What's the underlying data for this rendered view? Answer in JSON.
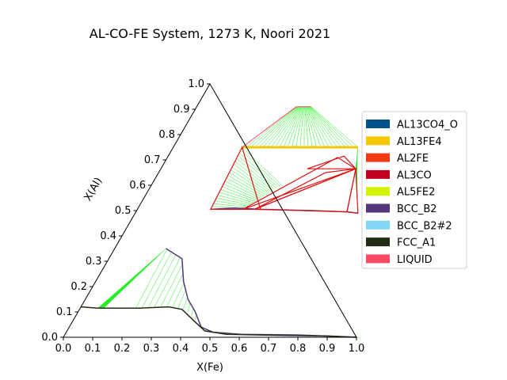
{
  "chart_data": {
    "type": "ternary-phase-diagram",
    "title": "AL-CO-FE System, 1273 K, Noori 2021",
    "xlabel": "X(Fe)",
    "ylabel": "X(Al)",
    "xlim": [
      0,
      1
    ],
    "ylim": [
      0,
      1
    ],
    "x_ticks": [
      "0.0",
      "0.1",
      "0.2",
      "0.3",
      "0.4",
      "0.5",
      "0.6",
      "0.7",
      "0.8",
      "0.9",
      "1.0"
    ],
    "y_ticks": [
      "0.0",
      "0.1",
      "0.2",
      "0.3",
      "0.4",
      "0.5",
      "0.6",
      "0.7",
      "0.8",
      "0.9",
      "1.0"
    ],
    "legend_position": "right",
    "legend": [
      {
        "name": "AL13CO4_O",
        "color": "#00538a"
      },
      {
        "name": "AL13FE4",
        "color": "#f4c800"
      },
      {
        "name": "AL2FE",
        "color": "#f13a13"
      },
      {
        "name": "AL3CO",
        "color": "#c10020"
      },
      {
        "name": "AL5FE2",
        "color": "#d2f300"
      },
      {
        "name": "BCC_B2",
        "color": "#53377a"
      },
      {
        "name": "BCC_B2#2",
        "color": "#7fd7f5"
      },
      {
        "name": "FCC_A1",
        "color": "#232c16"
      },
      {
        "name": "LIQUID",
        "color": "#ff4a66"
      }
    ],
    "tieline_color": "#22ee22",
    "three_phase_color": "#dd1111",
    "bcc_upper_boundary": [
      [
        0.175,
        0.35
      ],
      [
        0.25,
        0.31
      ],
      [
        0.3,
        0.22
      ],
      [
        0.35,
        0.15
      ],
      [
        0.4,
        0.1
      ],
      [
        0.45,
        0.04
      ],
      [
        0.5,
        0.02
      ],
      [
        0.6,
        0.012
      ],
      [
        0.8,
        0.009
      ],
      [
        1.0,
        0.0
      ]
    ],
    "bcc_lower_boundary": [
      [
        0.06,
        0.115
      ],
      [
        0.2,
        0.115
      ],
      [
        0.3,
        0.12
      ],
      [
        0.35,
        0.11
      ],
      [
        0.42,
        0.06
      ],
      [
        0.47,
        0.025
      ],
      [
        0.55,
        0.012
      ],
      [
        0.7,
        0.008
      ],
      [
        0.9,
        0.005
      ],
      [
        1.0,
        0.0
      ]
    ],
    "fcc_boundary": [
      [
        0.0,
        0.12
      ],
      [
        0.06,
        0.115
      ]
    ],
    "al13fe4_band": [
      [
        0.235,
        0.75
      ],
      [
        0.63,
        0.75
      ]
    ],
    "al2fe_point": [
      0.665,
      0.665
    ],
    "bcc_al_rich_boundary": [
      [
        0.25,
        0.505
      ],
      [
        0.33,
        0.51
      ],
      [
        0.42,
        0.505
      ],
      [
        0.6,
        0.5
      ],
      [
        0.72,
        0.495
      ],
      [
        0.76,
        0.49
      ]
    ],
    "three_phase_triangles": [
      [
        [
          0.25,
          0.505
        ],
        [
          0.235,
          0.75
        ],
        [
          0.42,
          0.505
        ]
      ],
      [
        [
          0.36,
          0.505
        ],
        [
          0.58,
          0.71
        ],
        [
          0.665,
          0.665
        ]
      ],
      [
        [
          0.4,
          0.505
        ],
        [
          0.57,
          0.65
        ],
        [
          0.665,
          0.665
        ]
      ],
      [
        [
          0.4,
          0.505
        ],
        [
          0.665,
          0.665
        ],
        [
          0.72,
          0.495
        ]
      ],
      [
        [
          0.665,
          0.665
        ],
        [
          0.72,
          0.495
        ],
        [
          0.76,
          0.49
        ]
      ],
      [
        [
          0.5,
          0.665
        ],
        [
          0.6,
          0.715
        ],
        [
          0.665,
          0.665
        ]
      ]
    ],
    "al_rich_cap": [
      [
        0.235,
        0.75
      ],
      [
        0.34,
        0.91
      ],
      [
        0.39,
        0.91
      ],
      [
        0.63,
        0.75
      ]
    ]
  }
}
